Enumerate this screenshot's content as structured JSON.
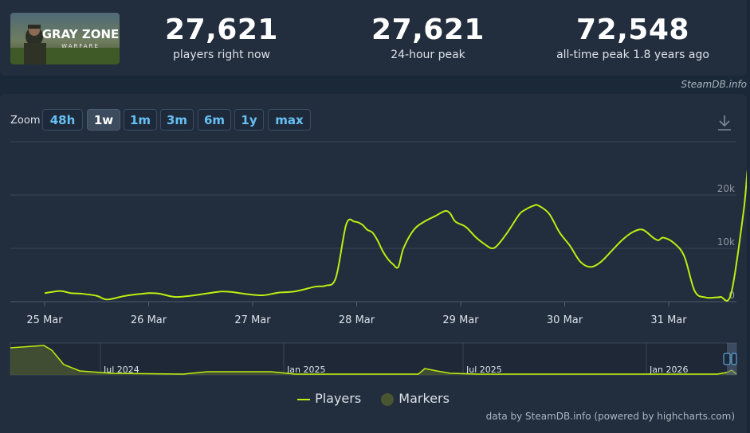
{
  "game": {
    "logo_text_line1": "GRAY ZONE",
    "logo_text_line2": "WARFARE"
  },
  "stats": [
    {
      "value": "27,621",
      "label": "players right now"
    },
    {
      "value": "27,621",
      "label": "24-hour peak"
    },
    {
      "value": "72,548",
      "label": "all-time peak 1.8 years ago"
    }
  ],
  "credit_top": "SteamDB.info",
  "zoom": {
    "label": "Zoom",
    "buttons": [
      "48h",
      "1w",
      "1m",
      "3m",
      "6m",
      "1y",
      "max"
    ],
    "active": "1w"
  },
  "legend": {
    "players": "Players",
    "markers": "Markers"
  },
  "credit_bottom": "data by SteamDB.info (powered by highcharts.com)",
  "colors": {
    "line": "#beee11",
    "navigator_fill": "#4a5632",
    "accent": "#66c0f4"
  },
  "chart_data": {
    "type": "line",
    "x_tick_labels": [
      "25 Mar",
      "26 Mar",
      "27 Mar",
      "28 Mar",
      "29 Mar",
      "30 Mar",
      "31 Mar"
    ],
    "y_tick_labels": [
      "0",
      "10k",
      "20k"
    ],
    "ylim": [
      0,
      30000
    ],
    "grid": true,
    "legend_position": "bottom",
    "series": [
      {
        "name": "Players",
        "x_days": [
          0,
          0.15,
          0.25,
          0.35,
          0.5,
          0.6,
          0.75,
          0.85,
          0.95,
          1.0,
          1.1,
          1.25,
          1.4,
          1.55,
          1.7,
          1.8,
          1.95,
          2.1,
          2.25,
          2.4,
          2.6,
          2.7,
          2.8,
          2.9,
          2.98,
          3.05,
          3.1,
          3.15,
          3.2,
          3.25,
          3.3,
          3.35,
          3.4,
          3.45,
          3.55,
          3.65,
          3.75,
          3.85,
          3.9,
          3.95,
          4.05,
          4.15,
          4.25,
          4.3,
          4.35,
          4.45,
          4.55,
          4.6,
          4.7,
          4.75,
          4.85,
          4.95,
          5.05,
          5.15,
          5.25,
          5.35,
          5.45,
          5.55,
          5.65,
          5.75,
          5.85,
          5.9,
          5.95,
          6.05,
          6.15,
          6.25,
          6.35,
          6.45,
          6.5,
          6.6,
          6.72,
          6.76,
          6.8,
          6.84,
          6.88,
          6.92
        ],
        "values": [
          1600,
          2000,
          1600,
          1500,
          1100,
          400,
          1000,
          1300,
          1500,
          1600,
          1500,
          900,
          1100,
          1500,
          1900,
          1800,
          1400,
          1200,
          1700,
          1900,
          2800,
          3000,
          4500,
          14500,
          15000,
          14500,
          13500,
          13000,
          11500,
          9500,
          8000,
          7000,
          6500,
          10000,
          13500,
          15000,
          16000,
          17000,
          16500,
          15000,
          14000,
          12000,
          10500,
          10000,
          10500,
          13000,
          16000,
          17000,
          18000,
          18000,
          16500,
          13000,
          10500,
          7500,
          6500,
          7500,
          9500,
          11500,
          13000,
          13500,
          12000,
          11500,
          12000,
          11000,
          8500,
          2000,
          800,
          800,
          900,
          1500,
          17000,
          25000,
          27621,
          27621,
          27621,
          27621
        ]
      }
    ],
    "navigator": {
      "x_labels": [
        "Jul 2024",
        "Jan 2025",
        "Jul 2025",
        "Jan 2026"
      ]
    }
  }
}
